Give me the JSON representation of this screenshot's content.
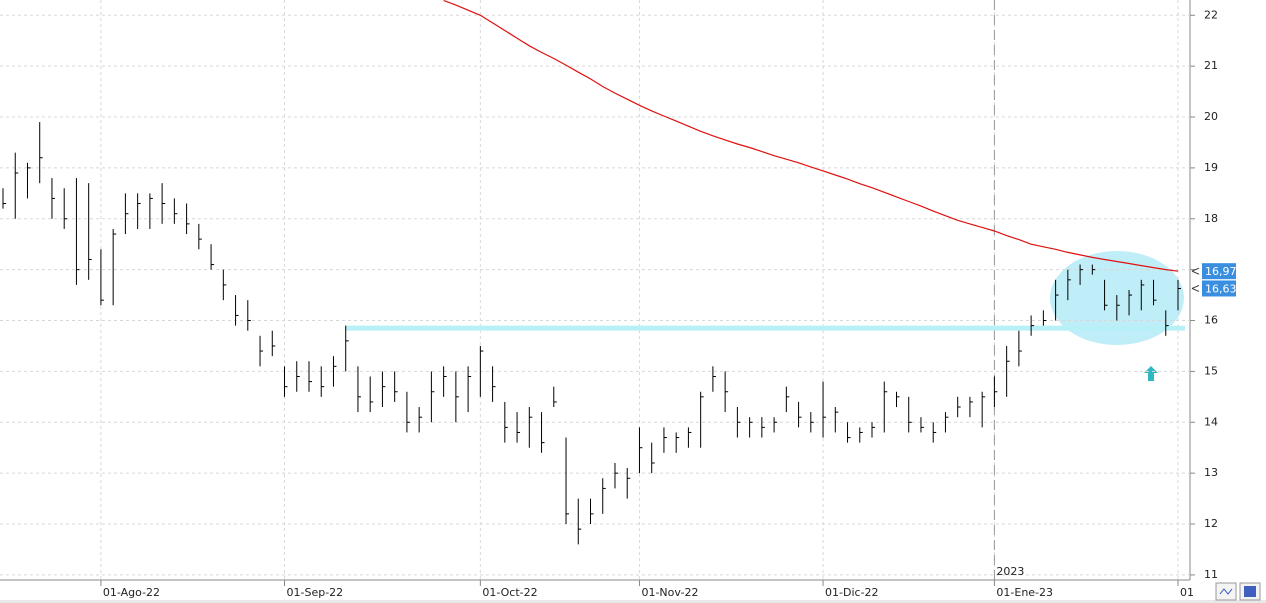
{
  "chart_data": {
    "type": "ohlc",
    "categories": [
      null,
      null,
      null,
      null,
      null,
      null,
      null,
      null,
      "01-Ago-22",
      null,
      null,
      null,
      null,
      null,
      null,
      null,
      null,
      null,
      null,
      null,
      null,
      null,
      null,
      "01-Sep-22",
      null,
      null,
      null,
      null,
      null,
      null,
      null,
      null,
      null,
      null,
      null,
      null,
      null,
      null,
      null,
      "01-Oct-22",
      null,
      null,
      null,
      null,
      null,
      null,
      null,
      null,
      null,
      null,
      null,
      null,
      "01-Nov-22",
      null,
      null,
      null,
      null,
      null,
      null,
      null,
      null,
      null,
      null,
      null,
      null,
      null,
      null,
      "01-Dic-22",
      null,
      null,
      null,
      null,
      null,
      null,
      null,
      null,
      null,
      null,
      null,
      null,
      null,
      "01-Ene-23",
      null,
      null,
      null,
      null,
      null,
      null,
      null,
      null,
      null,
      null,
      null,
      null,
      null,
      null,
      "01"
    ],
    "high": [
      18.6,
      19.3,
      19.1,
      19.9,
      18.8,
      18.6,
      18.8,
      18.7,
      17.4,
      17.8,
      18.5,
      18.5,
      18.5,
      18.7,
      18.4,
      18.3,
      17.9,
      17.5,
      17.0,
      16.5,
      16.4,
      15.7,
      15.8,
      15.1,
      15.2,
      15.2,
      15.1,
      15.3,
      15.9,
      15.1,
      14.9,
      15.0,
      15.0,
      14.6,
      14.3,
      15.0,
      15.1,
      15.0,
      15.1,
      15.5,
      15.1,
      14.4,
      14.2,
      14.3,
      14.2,
      14.7,
      13.7,
      12.5,
      12.5,
      12.9,
      13.2,
      13.1,
      13.9,
      13.6,
      13.9,
      13.8,
      13.9,
      14.6,
      15.1,
      15.0,
      14.3,
      14.1,
      14.1,
      14.1,
      14.7,
      14.4,
      14.2,
      14.8,
      14.3,
      14.0,
      13.9,
      14.0,
      14.8,
      14.6,
      14.5,
      14.1,
      14.0,
      14.2,
      14.5,
      14.5,
      14.6,
      14.9,
      15.5,
      15.8,
      16.1,
      16.2,
      16.8,
      17.0,
      17.1,
      17.1,
      16.8,
      16.5,
      16.6,
      16.8,
      16.8,
      16.2,
      16.8
    ],
    "low": [
      18.2,
      18.0,
      18.4,
      18.7,
      18.0,
      17.8,
      16.7,
      16.8,
      16.3,
      16.3,
      17.7,
      17.8,
      17.8,
      17.9,
      17.9,
      17.7,
      17.4,
      17.0,
      16.4,
      15.9,
      15.8,
      15.1,
      15.3,
      14.5,
      14.6,
      14.6,
      14.5,
      14.7,
      15.0,
      14.2,
      14.2,
      14.3,
      14.4,
      13.8,
      13.8,
      14.0,
      14.5,
      14.0,
      14.2,
      14.5,
      14.4,
      13.6,
      13.6,
      13.5,
      13.4,
      14.3,
      12.0,
      11.6,
      12.0,
      12.2,
      12.7,
      12.5,
      13.0,
      13.0,
      13.4,
      13.4,
      13.5,
      13.5,
      14.6,
      14.2,
      13.7,
      13.7,
      13.7,
      13.8,
      14.2,
      13.9,
      13.8,
      13.7,
      13.8,
      13.6,
      13.6,
      13.7,
      13.8,
      14.3,
      13.8,
      13.8,
      13.6,
      13.8,
      14.1,
      14.1,
      13.9,
      14.3,
      14.5,
      15.1,
      15.7,
      15.9,
      16.0,
      16.4,
      16.7,
      16.9,
      16.2,
      16.0,
      16.1,
      16.2,
      16.3,
      15.7,
      16.2
    ],
    "close": [
      18.3,
      18.9,
      19.0,
      19.2,
      18.4,
      18.0,
      17.0,
      17.2,
      16.4,
      17.7,
      18.1,
      18.3,
      18.4,
      18.3,
      18.1,
      17.9,
      17.6,
      17.1,
      16.7,
      16.1,
      16.0,
      15.4,
      15.5,
      14.7,
      14.9,
      14.8,
      14.7,
      15.1,
      15.6,
      14.5,
      14.4,
      14.7,
      14.6,
      14.0,
      14.1,
      14.6,
      14.9,
      14.5,
      14.9,
      15.4,
      14.7,
      13.9,
      13.8,
      14.1,
      13.6,
      14.4,
      12.2,
      11.9,
      12.2,
      12.7,
      13.0,
      12.9,
      13.5,
      13.2,
      13.7,
      13.7,
      13.8,
      14.5,
      14.9,
      14.6,
      14.0,
      14.0,
      13.9,
      14.0,
      14.5,
      14.1,
      14.0,
      14.1,
      14.2,
      13.7,
      13.8,
      13.9,
      14.6,
      14.5,
      14.0,
      13.9,
      13.8,
      14.1,
      14.3,
      14.4,
      14.5,
      14.6,
      15.2,
      15.4,
      15.9,
      16.0,
      16.5,
      16.8,
      17.0,
      17.0,
      16.3,
      16.3,
      16.5,
      16.7,
      16.4,
      15.9,
      16.63
    ],
    "color": "#000000",
    "ma_values": [
      null,
      null,
      null,
      null,
      null,
      null,
      null,
      null,
      null,
      null,
      null,
      null,
      null,
      null,
      null,
      null,
      null,
      null,
      null,
      null,
      null,
      null,
      null,
      null,
      null,
      null,
      null,
      null,
      null,
      null,
      null,
      null,
      null,
      null,
      null,
      null,
      22.29,
      22.2,
      22.1,
      22.0,
      21.85,
      21.7,
      21.55,
      21.4,
      21.27,
      21.15,
      21.02,
      20.88,
      20.75,
      20.6,
      20.47,
      20.35,
      20.23,
      20.12,
      20.02,
      19.92,
      19.82,
      19.72,
      19.63,
      19.55,
      19.47,
      19.4,
      19.32,
      19.24,
      19.17,
      19.1,
      19.02,
      18.94,
      18.86,
      18.78,
      18.69,
      18.61,
      18.52,
      18.43,
      18.34,
      18.25,
      18.15,
      18.06,
      17.97,
      17.9,
      17.83,
      17.76,
      17.67,
      17.59,
      17.5,
      17.45,
      17.4,
      17.34,
      17.29,
      17.24,
      17.2,
      17.16,
      17.12,
      17.08,
      17.04,
      17.0,
      16.97
    ],
    "ma_color": "#e01010",
    "support_level": 15.85,
    "support_color": "#b8f0f8",
    "year_label": "2023",
    "markers": [
      {
        "value": 16.97,
        "label": "16,97"
      },
      {
        "value": 16.63,
        "label": "16,63"
      }
    ],
    "marker_color": "#3a8ee0",
    "ylim": [
      10.9,
      22.3
    ],
    "yticks": [
      11,
      12,
      13,
      14,
      15,
      16,
      17,
      18,
      19,
      20,
      21,
      22
    ],
    "grid": true
  }
}
